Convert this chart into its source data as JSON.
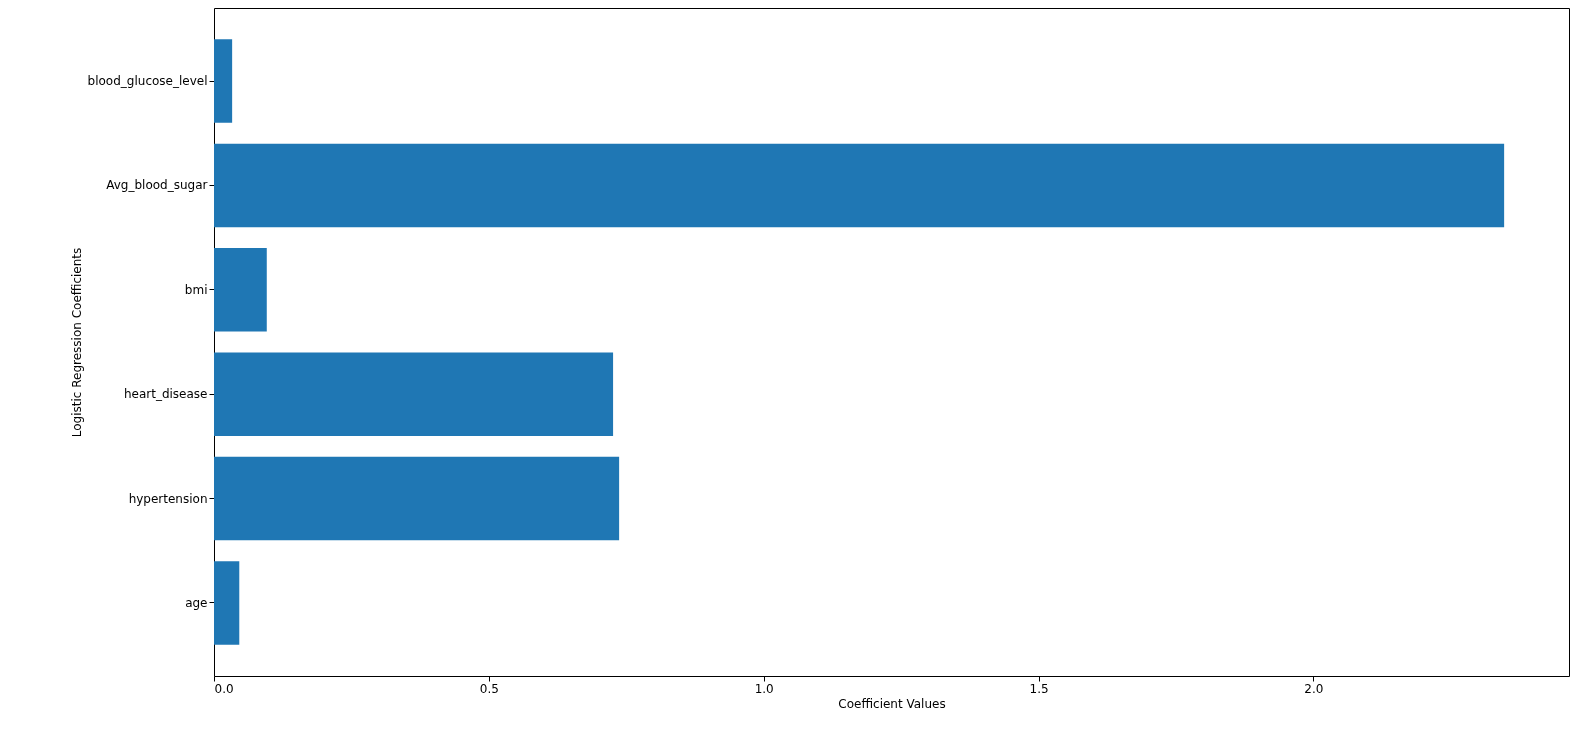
{
  "chart_data": {
    "type": "bar",
    "orientation": "horizontal",
    "xlabel": "Coefficient Values",
    "ylabel": "Logistic Regression Coefficients",
    "categories": [
      "blood_glucose_level",
      "Avg_blood_sugar",
      "bmi",
      "heart_disease",
      "hypertension",
      "age"
    ],
    "values": [
      0.033,
      2.347,
      0.096,
      0.726,
      0.737,
      0.046
    ],
    "color": "#1f77b4",
    "xlim": [
      0,
      2.465
    ],
    "xticks": [
      {
        "value": 0,
        "label": "0.0"
      },
      {
        "value": 0.5,
        "label": "0.5"
      },
      {
        "value": 1,
        "label": "1.0"
      },
      {
        "value": 1.5,
        "label": "1.5"
      },
      {
        "value": 2,
        "label": "2.0"
      }
    ],
    "grid": false
  }
}
